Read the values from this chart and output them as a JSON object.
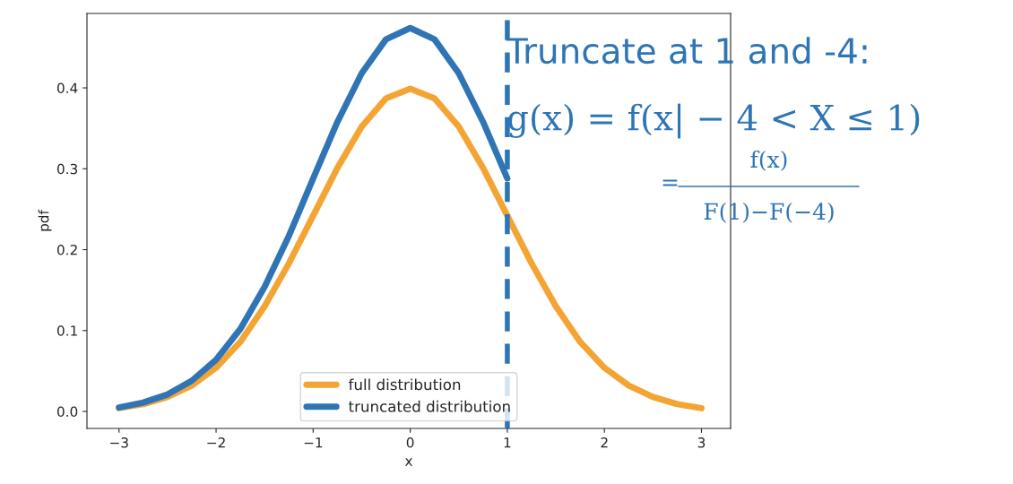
{
  "chart_data": {
    "type": "line",
    "xlabel": "x",
    "ylabel": "pdf",
    "xlim": [
      -3.33,
      3.3
    ],
    "ylim": [
      -0.021,
      0.492
    ],
    "xticks": [
      {
        "value": -3,
        "label": "−3"
      },
      {
        "value": -2,
        "label": "−2"
      },
      {
        "value": -1,
        "label": "−1"
      },
      0,
      1,
      2,
      3
    ],
    "yticks": [
      {
        "value": 0,
        "label": "0.0"
      },
      {
        "value": 0.1,
        "label": "0.1"
      },
      {
        "value": 0.2,
        "label": "0.2"
      },
      {
        "value": 0.3,
        "label": "0.3"
      },
      {
        "value": 0.4,
        "label": "0.4"
      }
    ],
    "series": [
      {
        "name": "full distribution",
        "color": "#f4a433",
        "x": [
          -3,
          -2.75,
          -2.5,
          -2.25,
          -2,
          -1.75,
          -1.5,
          -1.25,
          -1,
          -0.75,
          -0.5,
          -0.25,
          0,
          0.25,
          0.5,
          0.75,
          1,
          1.25,
          1.5,
          1.75,
          2,
          2.25,
          2.5,
          2.75,
          3
        ],
        "values": [
          0.004,
          0.009,
          0.018,
          0.032,
          0.054,
          0.086,
          0.13,
          0.183,
          0.242,
          0.301,
          0.352,
          0.387,
          0.399,
          0.387,
          0.352,
          0.301,
          0.242,
          0.183,
          0.13,
          0.086,
          0.054,
          0.032,
          0.018,
          0.009,
          0.004
        ]
      },
      {
        "name": "truncated distribution",
        "color": "#2f75b5",
        "x": [
          -3,
          -2.75,
          -2.5,
          -2.25,
          -2,
          -1.75,
          -1.5,
          -1.25,
          -1,
          -0.75,
          -0.5,
          -0.25,
          0,
          0.25,
          0.5,
          0.75,
          1
        ],
        "values": [
          0.005,
          0.011,
          0.021,
          0.038,
          0.064,
          0.102,
          0.154,
          0.217,
          0.288,
          0.358,
          0.418,
          0.46,
          0.474,
          0.46,
          0.418,
          0.358,
          0.288
        ]
      }
    ],
    "ref_lines": [
      {
        "axis": "x",
        "value": 1,
        "color": "#2e75b6",
        "line_style": "dashed"
      }
    ],
    "legend": "bottom",
    "grid": false,
    "line_style": "solid",
    "marker": "none",
    "annotations": [
      "Truncate at 1 and -4:",
      "g(x) = f(x| − 4 < X ≤ 1)",
      "=",
      "f(x)",
      "F(1)−F(−4)"
    ]
  }
}
